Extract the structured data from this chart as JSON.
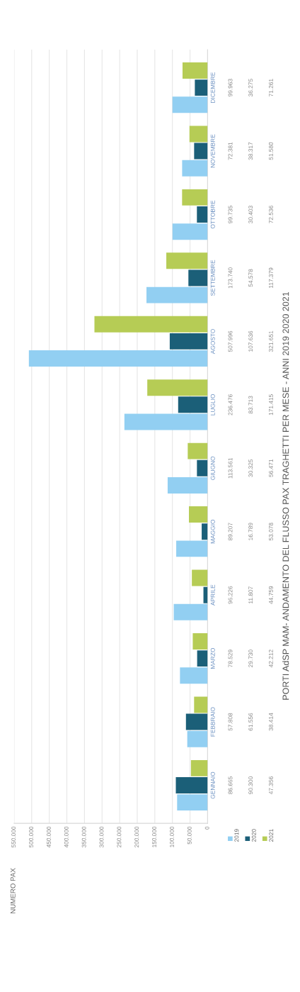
{
  "chart_data": {
    "type": "bar",
    "orientation": "horizontal",
    "title": "PORTI AdSP MAM- ANDAMENTO DEL FLUSSO PAX TRAGHETTI PER MESE - ANNI 2019 2020 2021",
    "annotations": [
      "NUMERO PAX"
    ],
    "categories": [
      "DICEMBRE",
      "NOVEMBRE",
      "OTTOBRE",
      "SETTEMBRE",
      "AGOSTO",
      "LUGLIO",
      "GIUGNO",
      "MAGGIO",
      "APRILE",
      "MARZO",
      "FEBBRAIO",
      "GENNAIO"
    ],
    "series": [
      {
        "name": "2019",
        "color": "#92cff2",
        "values": [
          99963,
          72381,
          99735,
          173740,
          507996,
          236476,
          113561,
          89207,
          96226,
          78529,
          57808,
          86665
        ],
        "value_labels": [
          "99.963",
          "72.381",
          "99.735",
          "173.740",
          "507.996",
          "236.476",
          "113.561",
          "89.207",
          "96.226",
          "78.529",
          "57.808",
          "86.665"
        ]
      },
      {
        "name": "2020",
        "color": "#1b5f78",
        "values": [
          36275,
          38317,
          30403,
          54578,
          107636,
          83713,
          30325,
          16789,
          11807,
          29730,
          61556,
          90300
        ],
        "value_labels": [
          "36.275",
          "38.317",
          "30.403",
          "54.578",
          "107.636",
          "83.713",
          "30.325",
          "16.789",
          "11.807",
          "29.730",
          "61.556",
          "90.300"
        ]
      },
      {
        "name": "2021",
        "color": "#b6cc55",
        "values": [
          71261,
          51580,
          72536,
          117379,
          321651,
          171415,
          56471,
          53078,
          44759,
          42212,
          38414,
          47356
        ],
        "value_labels": [
          "71.261",
          "51.580",
          "72.536",
          "117.379",
          "321.651",
          "171.415",
          "56.471",
          "53.078",
          "44.759",
          "42.212",
          "38.414",
          "47.356"
        ]
      }
    ],
    "xlim": [
      550000,
      0
    ],
    "xticks": [
      {
        "value": 550000,
        "label": "550.000"
      },
      {
        "value": 500000,
        "label": "500.000"
      },
      {
        "value": 450000,
        "label": "450.000"
      },
      {
        "value": 400000,
        "label": "400.000"
      },
      {
        "value": 350000,
        "label": "350.000"
      },
      {
        "value": 300000,
        "label": "300.000"
      },
      {
        "value": 250000,
        "label": "250.000"
      },
      {
        "value": 200000,
        "label": "200.000"
      },
      {
        "value": 150000,
        "label": "150.000"
      },
      {
        "value": 100000,
        "label": "100.000"
      },
      {
        "value": 50000,
        "label": "50.000"
      },
      0
    ],
    "grid": "x",
    "legend": "right"
  }
}
